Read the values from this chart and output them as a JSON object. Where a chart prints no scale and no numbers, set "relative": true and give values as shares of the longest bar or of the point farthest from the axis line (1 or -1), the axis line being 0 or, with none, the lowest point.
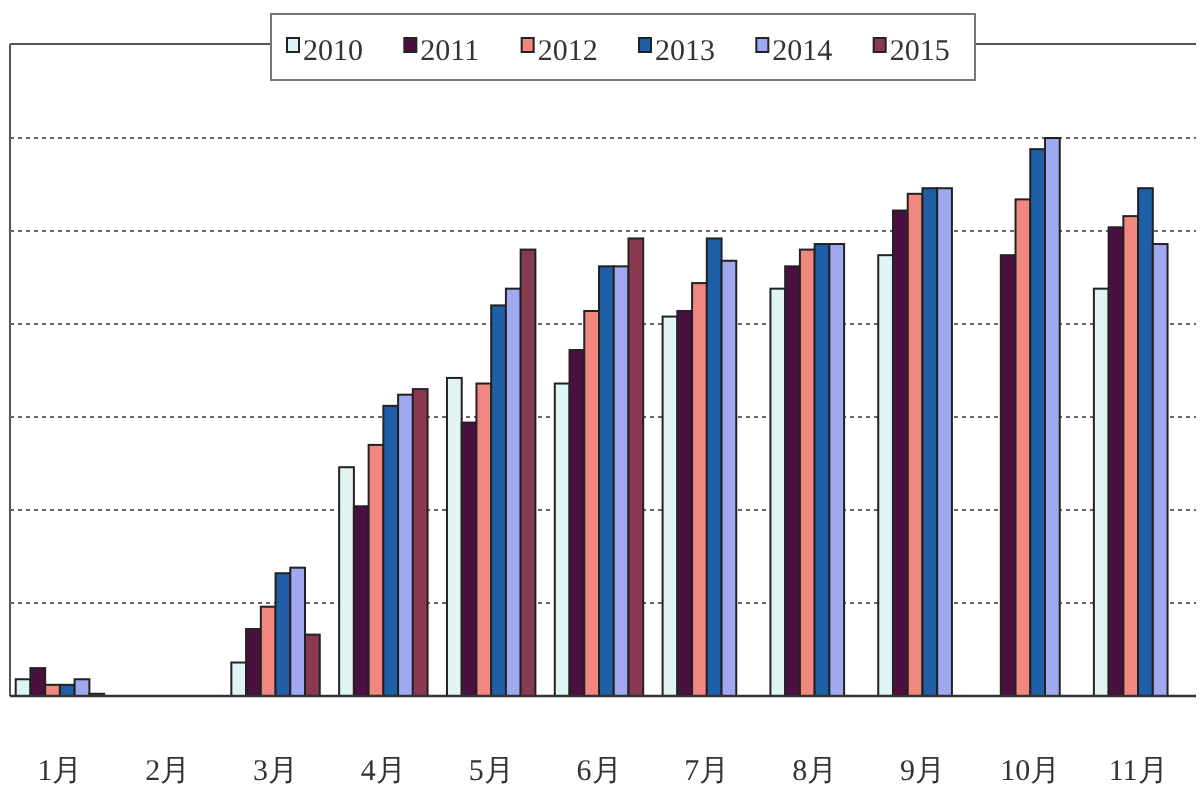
{
  "chart_data": {
    "type": "bar",
    "relative": true,
    "grid": "y",
    "legend": "top",
    "categories": [
      "1月",
      "2月",
      "3月",
      "4月",
      "5月",
      "6月",
      "7月",
      "8月",
      "9月",
      "10月",
      "11月"
    ],
    "series": [
      {
        "name": "2010",
        "color": "#e0f4f4",
        "values": [
          0.03,
          0,
          0.06,
          0.41,
          0.57,
          0.56,
          0.68,
          0.73,
          0.79,
          null,
          0.73
        ]
      },
      {
        "name": "2011",
        "color": "#4a1040",
        "values": [
          0.05,
          0,
          0.12,
          0.34,
          0.49,
          0.62,
          0.69,
          0.77,
          0.87,
          0.79,
          0.84
        ]
      },
      {
        "name": "2012",
        "color": "#f08880",
        "values": [
          0.02,
          0,
          0.16,
          0.45,
          0.56,
          0.69,
          0.74,
          0.8,
          0.9,
          0.89,
          0.86
        ]
      },
      {
        "name": "2013",
        "color": "#1f5fa8",
        "values": [
          0.02,
          0,
          0.22,
          0.52,
          0.7,
          0.77,
          0.82,
          0.81,
          0.91,
          0.98,
          0.91
        ]
      },
      {
        "name": "2014",
        "color": "#a0a8f0",
        "values": [
          0.03,
          0,
          0.23,
          0.54,
          0.73,
          0.77,
          0.78,
          0.81,
          0.91,
          1,
          0.81
        ]
      },
      {
        "name": "2015",
        "color": "#8a3a50",
        "values": [
          0.004,
          0,
          0.11,
          0.55,
          0.8,
          0.82,
          null,
          null,
          null,
          null,
          null
        ]
      }
    ]
  }
}
